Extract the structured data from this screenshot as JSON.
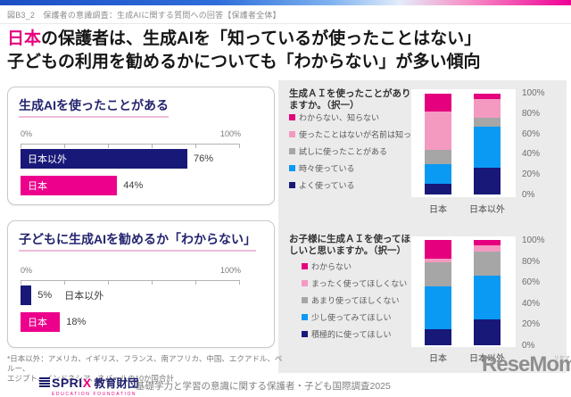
{
  "page": {
    "fig_label": "図B3_2　保護者の意識調査：生成AIに関する質問への回答【保護者全体】",
    "headline": {
      "line1_highlight": "日本",
      "line1_rest": "の保護者は、生成AIを「知っているが使ったことはない」",
      "line2": "子どもの利用を勧めるかについても「わからない」が多い傾向"
    }
  },
  "colors": {
    "navy": "#181878",
    "magenta": "#ec008c",
    "light_pink": "#f49ac1",
    "gray": "#a6a6a6",
    "blue": "#0a9af4",
    "highlight_text": "#e6007e",
    "panel_bg": "#ebebeb"
  },
  "chart_data": [
    {
      "id": "used-generative-ai",
      "type": "bar",
      "orientation": "horizontal",
      "title": "生成AIを使ったことがある",
      "xlim": [
        0,
        100
      ],
      "x_ticks": [
        "0%",
        "100%"
      ],
      "bars": [
        {
          "label": "日本以外",
          "value": 76,
          "display": "76%",
          "color": "#181878",
          "label_position": "inside"
        },
        {
          "label": "日本",
          "value": 44,
          "display": "44%",
          "color": "#ec008c",
          "label_position": "inside"
        }
      ]
    },
    {
      "id": "recommend-ai-unknown",
      "type": "bar",
      "orientation": "horizontal",
      "title": "子どもに生成AIを勧めるか「わからない」",
      "xlim": [
        0,
        100
      ],
      "x_ticks": [
        "0%",
        "100%"
      ],
      "bars": [
        {
          "label": "日本以外",
          "value": 5,
          "display": "5%",
          "color": "#181878",
          "label_position": "outside"
        },
        {
          "label": "日本",
          "value": 18,
          "display": "18%",
          "color": "#ec008c",
          "label_position": "inside"
        }
      ]
    },
    {
      "id": "used-generative-ai-detail",
      "type": "stacked-bar",
      "title": "生成ＡＩを使ったことがありますか。（択一）",
      "categories": [
        "日本",
        "日本以外"
      ],
      "ylim": [
        0,
        100
      ],
      "y_ticks": [
        "100%",
        "80%",
        "60%",
        "40%",
        "20%",
        "0%"
      ],
      "legend_position": "left",
      "segments_top_to_bottom": [
        {
          "name": "わからない、知らない",
          "color": "#e5007e",
          "values": [
            18,
            5
          ]
        },
        {
          "name": "使ったことはないが名前は知っている",
          "color": "#f49ac1",
          "values": [
            38,
            19
          ]
        },
        {
          "name": "試しに使ったことがある",
          "color": "#a6a6a6",
          "values": [
            14,
            9
          ]
        },
        {
          "name": "時々使っている",
          "color": "#0a9af4",
          "values": [
            19,
            40
          ]
        },
        {
          "name": "よく使っている",
          "color": "#181878",
          "values": [
            11,
            27
          ]
        }
      ]
    },
    {
      "id": "want-child-to-use",
      "type": "stacked-bar",
      "title": "お子様に生成ＡＩを使ってほしいと思いますか。（択一）",
      "categories": [
        "日本",
        "日本以外"
      ],
      "ylim": [
        0,
        100
      ],
      "y_ticks": [
        "100%",
        "80%",
        "60%",
        "40%",
        "20%",
        "0%"
      ],
      "legend_position": "left",
      "segments_top_to_bottom": [
        {
          "name": "わからない",
          "color": "#e5007e",
          "values": [
            18,
            5
          ]
        },
        {
          "name": "まったく使ってほしくない",
          "color": "#f49ac1",
          "values": [
            3,
            6
          ]
        },
        {
          "name": "あまり使ってほしくない",
          "color": "#a6a6a6",
          "values": [
            23,
            23
          ]
        },
        {
          "name": "少し使ってみてほしい",
          "color": "#0a9af4",
          "values": [
            41,
            41
          ]
        },
        {
          "name": "積極的に使ってほしい",
          "color": "#181878",
          "values": [
            15,
            25
          ]
        }
      ]
    }
  ],
  "footer": {
    "note_line1": "*日本以外：アメリカ、イギリス、フランス、南アフリカ、中国、エクアドル、ペルー、",
    "note_line2": "エジプト、インドネシア、ネパールの10か国合計",
    "survey_title": "基礎学力と学習の意識に関する保護者・子ども国際調査2025",
    "sprix_logo": {
      "text": "SPRI",
      "x": "X",
      "suffix": "教育財団",
      "sub": "EDUCATION FOUNDATION"
    },
    "resemom_logo": {
      "text": "ReseMom",
      "dot": ".",
      "ruby": "リセマム"
    }
  }
}
